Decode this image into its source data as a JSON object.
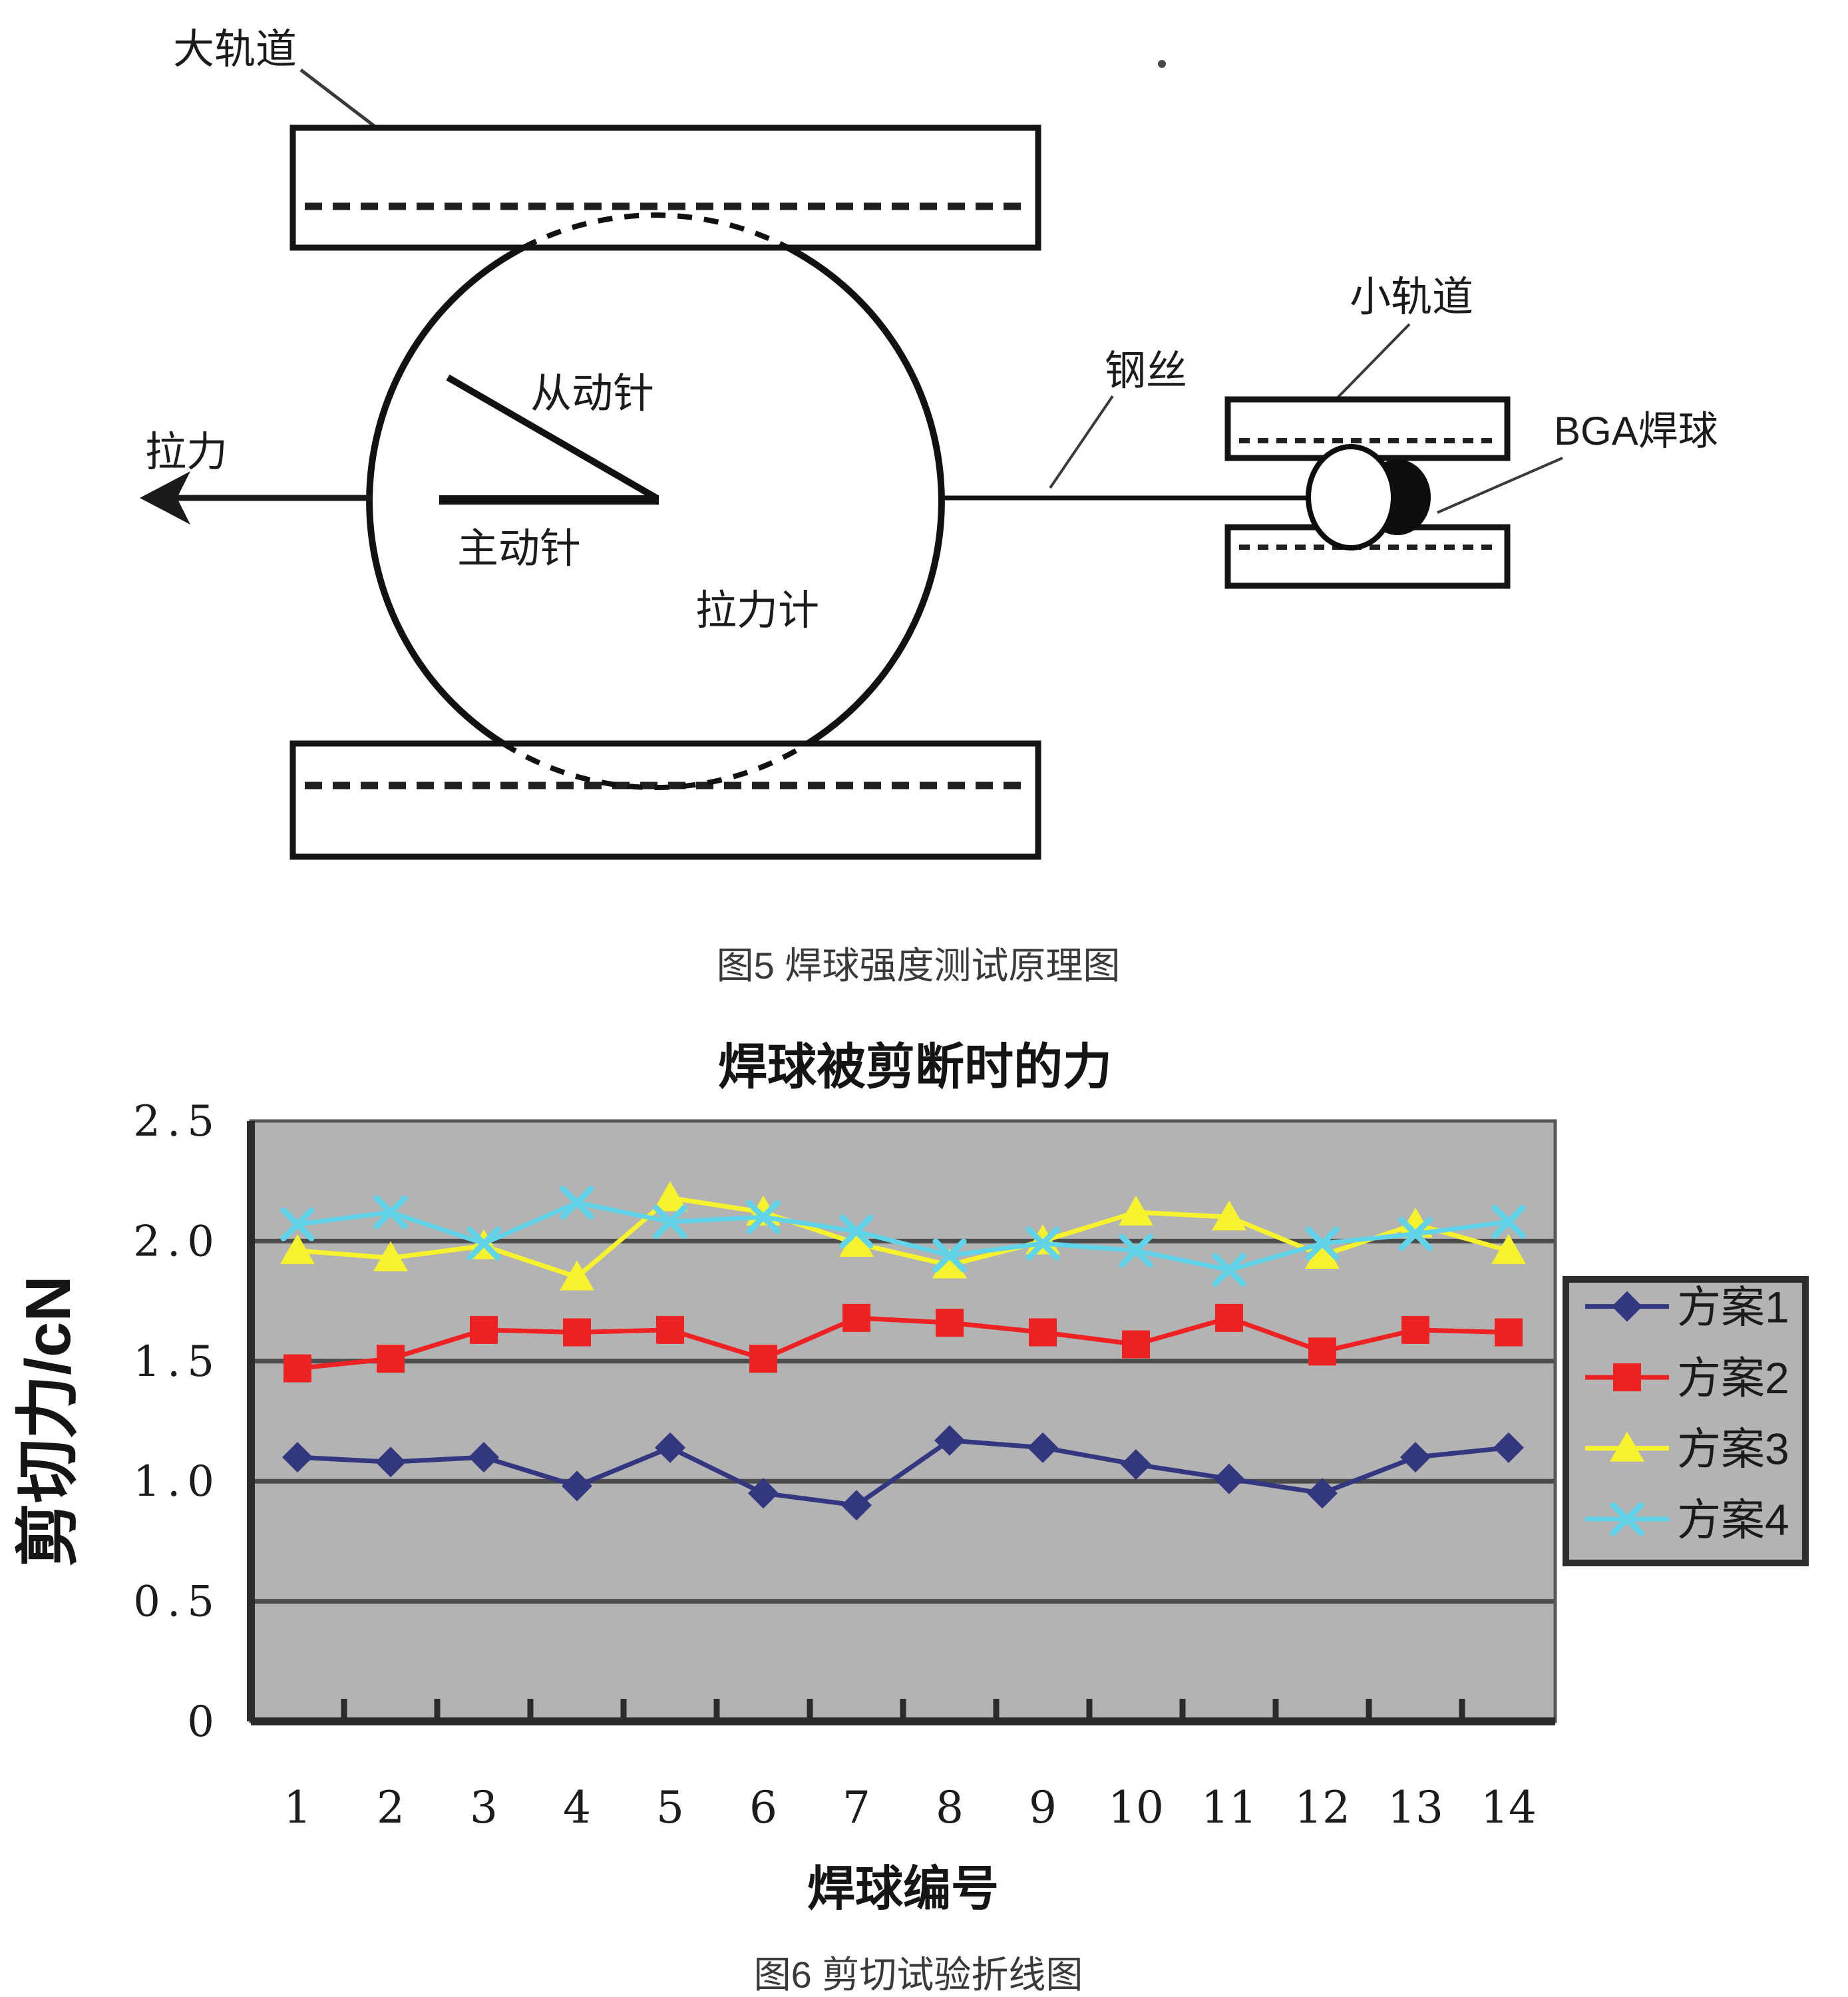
{
  "figure5": {
    "caption": "图5 焊球强度测试原理图",
    "labels": {
      "big_rail": "大轨道",
      "pull_force": "拉力",
      "driven_needle": "从动针",
      "active_needle": "主动针",
      "force_gauge": "拉力计",
      "steel_wire": "钢丝",
      "small_rail": "小轨道",
      "bga_ball": "BGA焊球"
    }
  },
  "figure6": {
    "caption": "图6 剪切试验折线图"
  },
  "chart_data": {
    "type": "line",
    "title": "焊球被剪断时的力",
    "xlabel": "焊球编号",
    "ylabel": "剪切力/cN",
    "x": [
      1,
      2,
      3,
      4,
      5,
      6,
      7,
      8,
      9,
      10,
      11,
      12,
      13,
      14
    ],
    "ylim": [
      0,
      2.5
    ],
    "ytick_step": 0.5,
    "ytick_labels": [
      "0",
      "0.5",
      "1.0",
      "1.5",
      "2.0",
      "2.5"
    ],
    "grid": true,
    "legend_position": "right",
    "plot_bg": "#b3b3b3",
    "grid_color": "#4c4c4c",
    "axis_color": "#2c2c2c",
    "series": [
      {
        "name": "方案1",
        "color": "#32377f",
        "marker": "diamond",
        "values": [
          1.1,
          1.08,
          1.1,
          0.98,
          1.14,
          0.95,
          0.9,
          1.17,
          1.14,
          1.07,
          1.01,
          0.95,
          1.1,
          1.14
        ]
      },
      {
        "name": "方案2",
        "color": "#ee2222",
        "marker": "square",
        "values": [
          1.47,
          1.51,
          1.63,
          1.62,
          1.63,
          1.51,
          1.68,
          1.66,
          1.62,
          1.57,
          1.68,
          1.54,
          1.63,
          1.62
        ]
      },
      {
        "name": "方案3",
        "color": "#f6f32e",
        "marker": "triangle",
        "values": [
          1.96,
          1.93,
          1.98,
          1.85,
          2.18,
          2.12,
          1.99,
          1.9,
          2.0,
          2.12,
          2.1,
          1.94,
          2.07,
          1.96
        ]
      },
      {
        "name": "方案4",
        "color": "#62d4e9",
        "marker": "x",
        "values": [
          2.07,
          2.12,
          1.99,
          2.16,
          2.08,
          2.1,
          2.04,
          1.94,
          1.99,
          1.96,
          1.88,
          1.99,
          2.03,
          2.08
        ]
      }
    ]
  }
}
